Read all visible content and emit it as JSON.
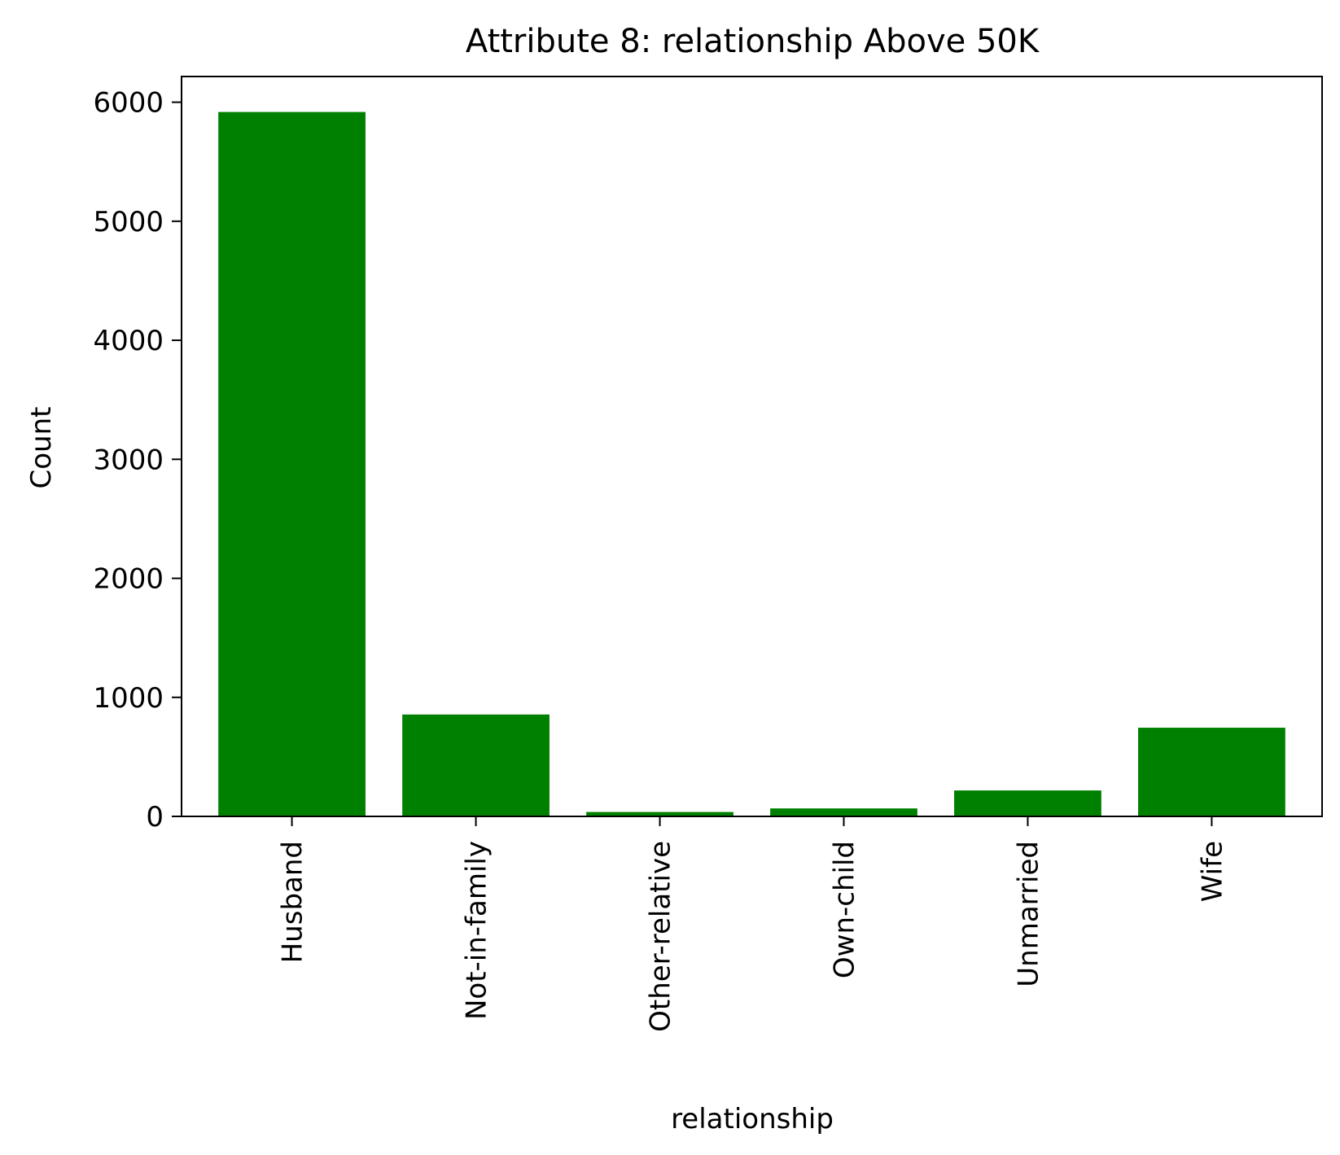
{
  "chart_data": {
    "type": "bar",
    "title": "Attribute 8: relationship Above 50K",
    "xlabel": "relationship",
    "ylabel": "Count",
    "categories": [
      "Husband",
      "Not-in-family",
      "Other-relative",
      "Own-child",
      "Unmarried",
      "Wife"
    ],
    "values": [
      5918,
      856,
      37,
      67,
      218,
      745
    ],
    "ylim": [
      0,
      6216
    ],
    "yticks": [
      0,
      1000,
      2000,
      3000,
      4000,
      5000,
      6000
    ],
    "grid": false,
    "legend": "none",
    "bar_color": "#008000"
  }
}
